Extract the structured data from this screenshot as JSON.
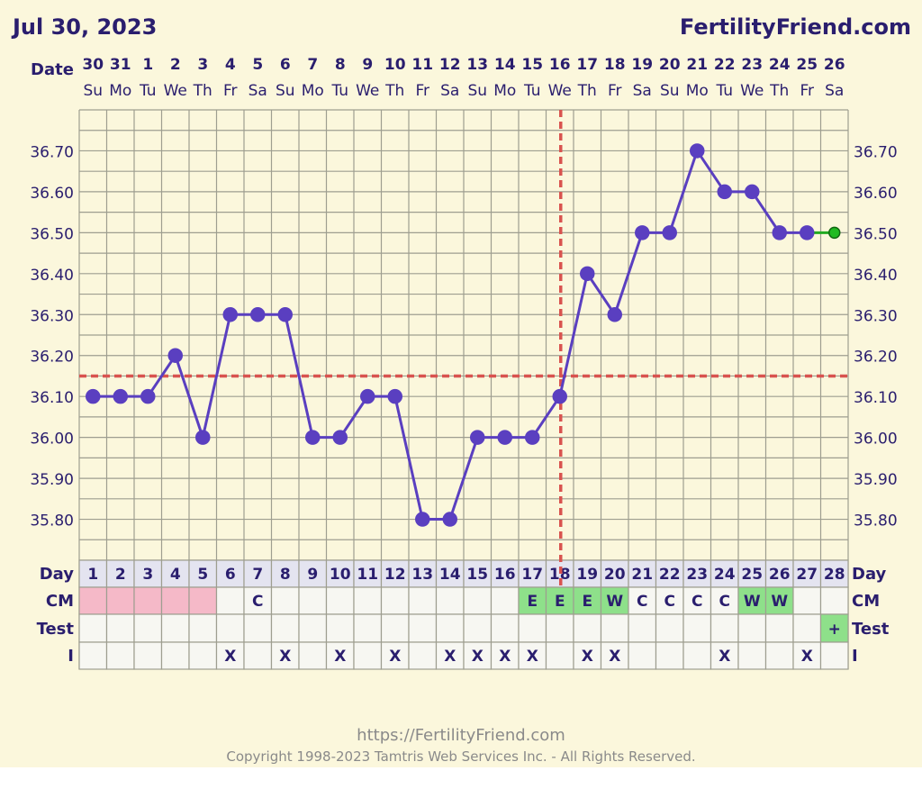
{
  "header": {
    "date": "Jul 30, 2023",
    "brand": "FertilityFriend.com",
    "date_row_label": "Date"
  },
  "footer": {
    "url": "https://FertilityFriend.com",
    "copyright": "Copyright 1998-2023 Tamtris Web Services Inc. - All Rights Reserved."
  },
  "colors": {
    "background": "#fbf7dc",
    "grid": "#9e9e90",
    "temp_line": "#5a3fc0",
    "text": "#2a1e6e",
    "coverline": "#d9534f",
    "menstruation": "#f5b9c8",
    "fertile_cm": "#8ee08a",
    "positive_test": "#8ee08a",
    "footer_text": "#8a8a8a"
  },
  "chart_data": {
    "type": "line",
    "dates": [
      "30",
      "31",
      "1",
      "2",
      "3",
      "4",
      "5",
      "6",
      "7",
      "8",
      "9",
      "10",
      "11",
      "12",
      "13",
      "14",
      "15",
      "16",
      "17",
      "18",
      "19",
      "20",
      "21",
      "22",
      "23",
      "24",
      "25",
      "26"
    ],
    "weekdays": [
      "Su",
      "Mo",
      "Tu",
      "We",
      "Th",
      "Fr",
      "Sa",
      "Su",
      "Mo",
      "Tu",
      "We",
      "Th",
      "Fr",
      "Sa",
      "Su",
      "Mo",
      "Tu",
      "We",
      "Th",
      "Fr",
      "Sa",
      "Su",
      "Mo",
      "Tu",
      "We",
      "Th",
      "Fr",
      "Sa"
    ],
    "cycle_days": [
      "1",
      "2",
      "3",
      "4",
      "5",
      "6",
      "7",
      "8",
      "9",
      "10",
      "11",
      "12",
      "13",
      "14",
      "15",
      "16",
      "17",
      "18",
      "19",
      "20",
      "21",
      "22",
      "23",
      "24",
      "25",
      "26",
      "27",
      "28"
    ],
    "temperatures": [
      36.1,
      36.1,
      36.1,
      36.2,
      36.0,
      36.3,
      36.3,
      36.3,
      36.0,
      36.0,
      36.1,
      36.1,
      35.8,
      35.8,
      36.0,
      36.0,
      36.0,
      36.1,
      36.4,
      36.3,
      36.5,
      36.5,
      36.7,
      36.6,
      36.6,
      36.5,
      36.5,
      36.5
    ],
    "highlighted_point_index": 27,
    "y_ticks": [
      "36.70",
      "36.60",
      "36.50",
      "36.40",
      "36.30",
      "36.20",
      "36.10",
      "36.00",
      "35.90",
      "35.80"
    ],
    "y_tick_values": [
      36.7,
      36.6,
      36.5,
      36.4,
      36.3,
      36.2,
      36.1,
      36.0,
      35.9,
      35.8
    ],
    "ylim": [
      35.7,
      36.8
    ],
    "coverline": 36.15,
    "ovulation_day": 18,
    "rows": [
      {
        "label": "Day"
      },
      {
        "label": "CM",
        "values": [
          "",
          "",
          "",
          "",
          "",
          "",
          "C",
          "",
          "",
          "",
          "",
          "",
          "",
          "",
          "",
          "",
          "E",
          "E",
          "E",
          "W",
          "C",
          "C",
          "C",
          "C",
          "W",
          "W",
          "",
          ""
        ],
        "menstruation_days": [
          1,
          2,
          3,
          4,
          5
        ],
        "fertile_days": [
          17,
          18,
          19,
          20,
          25,
          26
        ]
      },
      {
        "label": "Test",
        "values": [
          "",
          "",
          "",
          "",
          "",
          "",
          "",
          "",
          "",
          "",
          "",
          "",
          "",
          "",
          "",
          "",
          "",
          "",
          "",
          "",
          "",
          "",
          "",
          "",
          "",
          "",
          "",
          "+"
        ],
        "positive_days": [
          28
        ]
      },
      {
        "label": "I",
        "values": [
          "",
          "",
          "",
          "",
          "",
          "X",
          "",
          "X",
          "",
          "X",
          "",
          "X",
          "",
          "X",
          "X",
          "X",
          "X",
          "",
          "X",
          "X",
          "",
          "",
          "",
          "X",
          "",
          "",
          "X",
          ""
        ]
      }
    ],
    "grid": true
  }
}
